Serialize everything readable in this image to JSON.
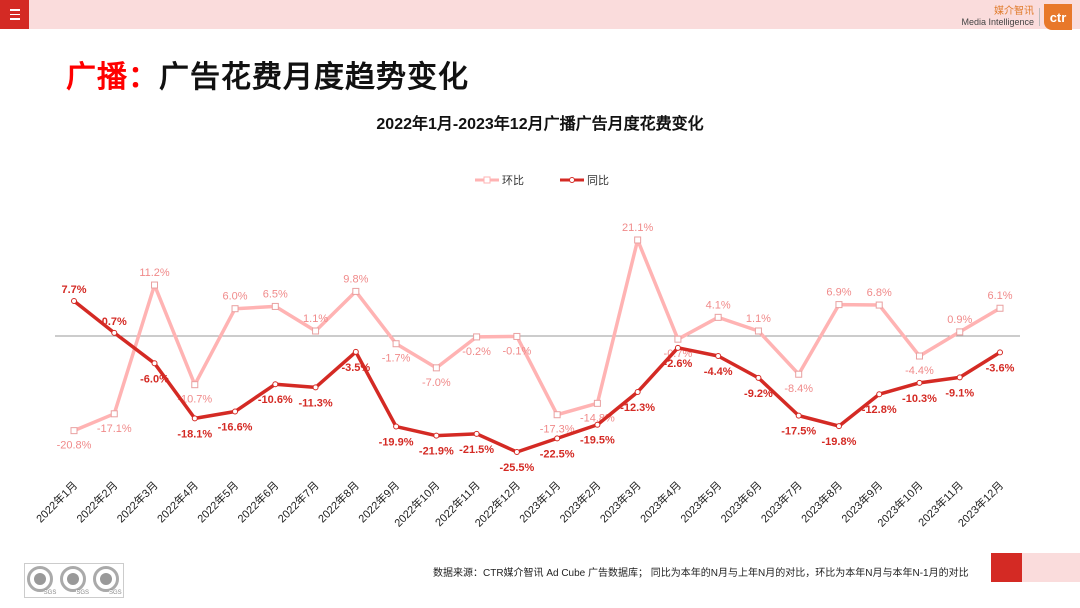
{
  "header": {
    "brand_cn": "媒介智讯",
    "brand_en": "Media Intelligence",
    "logo": "ctr"
  },
  "page_title": {
    "prefix": "广播：",
    "main": "广告花费月度趋势变化"
  },
  "footer": {
    "note": "数据来源：CTR媒介智讯 Ad Cube 广告数据库； 同比为本年的N月与上年N月的对比，环比为本年N月与本年N-1月的对比",
    "certification_badges": [
      "SGS",
      "SGS",
      "SGS"
    ]
  },
  "chart_data": {
    "type": "line",
    "title": "2022年1月-2023年12月广播广告月度花费变化",
    "categories": [
      "2022年1月",
      "2022年2月",
      "2022年3月",
      "2022年4月",
      "2022年5月",
      "2022年6月",
      "2022年7月",
      "2022年8月",
      "2022年9月",
      "2022年10月",
      "2022年11月",
      "2022年12月",
      "2023年1月",
      "2023年2月",
      "2023年3月",
      "2023年4月",
      "2023年5月",
      "2023年6月",
      "2023年7月",
      "2023年8月",
      "2023年9月",
      "2023年10月",
      "2023年11月",
      "2023年12月"
    ],
    "unit": "%",
    "legend_position": "top",
    "grid": false,
    "zero_line": true,
    "series": [
      {
        "name": "环比",
        "color": "#ffb3b3",
        "marker": "square",
        "values": [
          -20.8,
          -17.1,
          11.2,
          -10.7,
          6.0,
          6.5,
          1.1,
          9.8,
          -1.7,
          -7.0,
          -0.2,
          -0.1,
          -17.3,
          -14.8,
          21.1,
          -0.7,
          4.1,
          1.1,
          -8.4,
          6.9,
          6.8,
          -4.4,
          0.9,
          6.1
        ]
      },
      {
        "name": "同比",
        "color": "#d42a24",
        "marker": "circle",
        "values": [
          7.7,
          0.7,
          -6.0,
          -18.1,
          -16.6,
          -10.6,
          -11.3,
          -3.5,
          -19.9,
          -21.9,
          -21.5,
          -25.5,
          -22.5,
          -19.5,
          -12.3,
          -2.6,
          -4.4,
          -9.2,
          -17.5,
          -19.8,
          -12.8,
          -10.3,
          -9.1,
          -3.6
        ]
      }
    ]
  }
}
